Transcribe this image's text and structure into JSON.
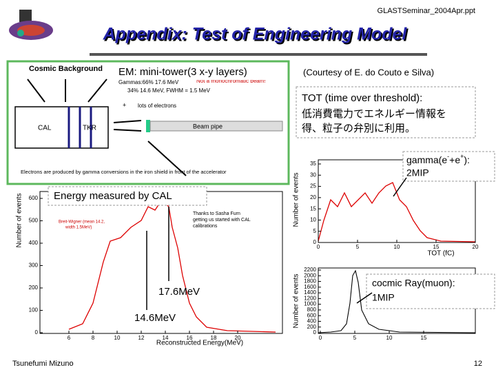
{
  "header": {
    "file": "GLASTSeminar_2004Apr.ppt",
    "title": "Appendix: Test of Engineering Model"
  },
  "setup_figure": {
    "label": "EM: mini-tower(3 x-y layers)",
    "texts": {
      "cosmic": "Cosmic Background",
      "gammas": "Gammas:66% 17.6 MeV",
      "gammas2": "34% 14.6 MeV, FWHM = 1.5 MeV",
      "warning": "Not a monochromatic beam!",
      "plus": "+",
      "electrons": "lots of electrons",
      "cal": "CAL",
      "tkr": "TKR",
      "pipe": "Beam pipe",
      "caption": "Electrons are produced by gamma conversions in the iron shield in front of the accelerator"
    }
  },
  "credit": "(Courtesy of E. do Couto e Silva)",
  "tot_note": {
    "title": "TOT (time over threshold):",
    "lines": [
      "低消費電力でエネルギー情報を",
      "得、粒子の弁別に利用。"
    ]
  },
  "energy_plot": {
    "label": "Energy measured by CAL",
    "xlabel": "Reconstructed Energy(MeV)",
    "ylabel": "Number of events",
    "xticks": [
      6,
      8,
      10,
      12,
      14,
      16,
      18,
      20
    ],
    "yticks": [
      0,
      100,
      200,
      300,
      400,
      500,
      600
    ],
    "legend": [
      "Breit-Wigner (mean 14.2,",
      "width 1.5MeV)"
    ],
    "thanks": [
      "Thanks to Sasha Furn",
      "getting us started with CAL",
      "calibrations"
    ],
    "annotations": [
      "17.6MeV",
      "14.6MeV"
    ]
  },
  "tot_plot": {
    "xlabel": "TOT (fC)",
    "ylabel": "Number of events",
    "xticks": [
      0,
      5,
      10,
      15,
      20
    ],
    "yticks": [
      0,
      5,
      10,
      15,
      20,
      25,
      30,
      35
    ],
    "annotation": [
      "gamma(e",
      "-",
      "+e",
      "+",
      "):",
      "2MIP"
    ]
  },
  "muon_plot": {
    "ylabel": "Number of events",
    "xticks": [
      0,
      5,
      10,
      15
    ],
    "yticks": [
      0,
      200,
      400,
      600,
      800,
      1000,
      1200,
      1400,
      1600,
      1800,
      2000,
      2200
    ],
    "annotation": [
      "cocmic Ray(muon):",
      "1MIP"
    ]
  },
  "footer": {
    "author": "Tsunefumi Mizuno",
    "page": "12"
  }
}
